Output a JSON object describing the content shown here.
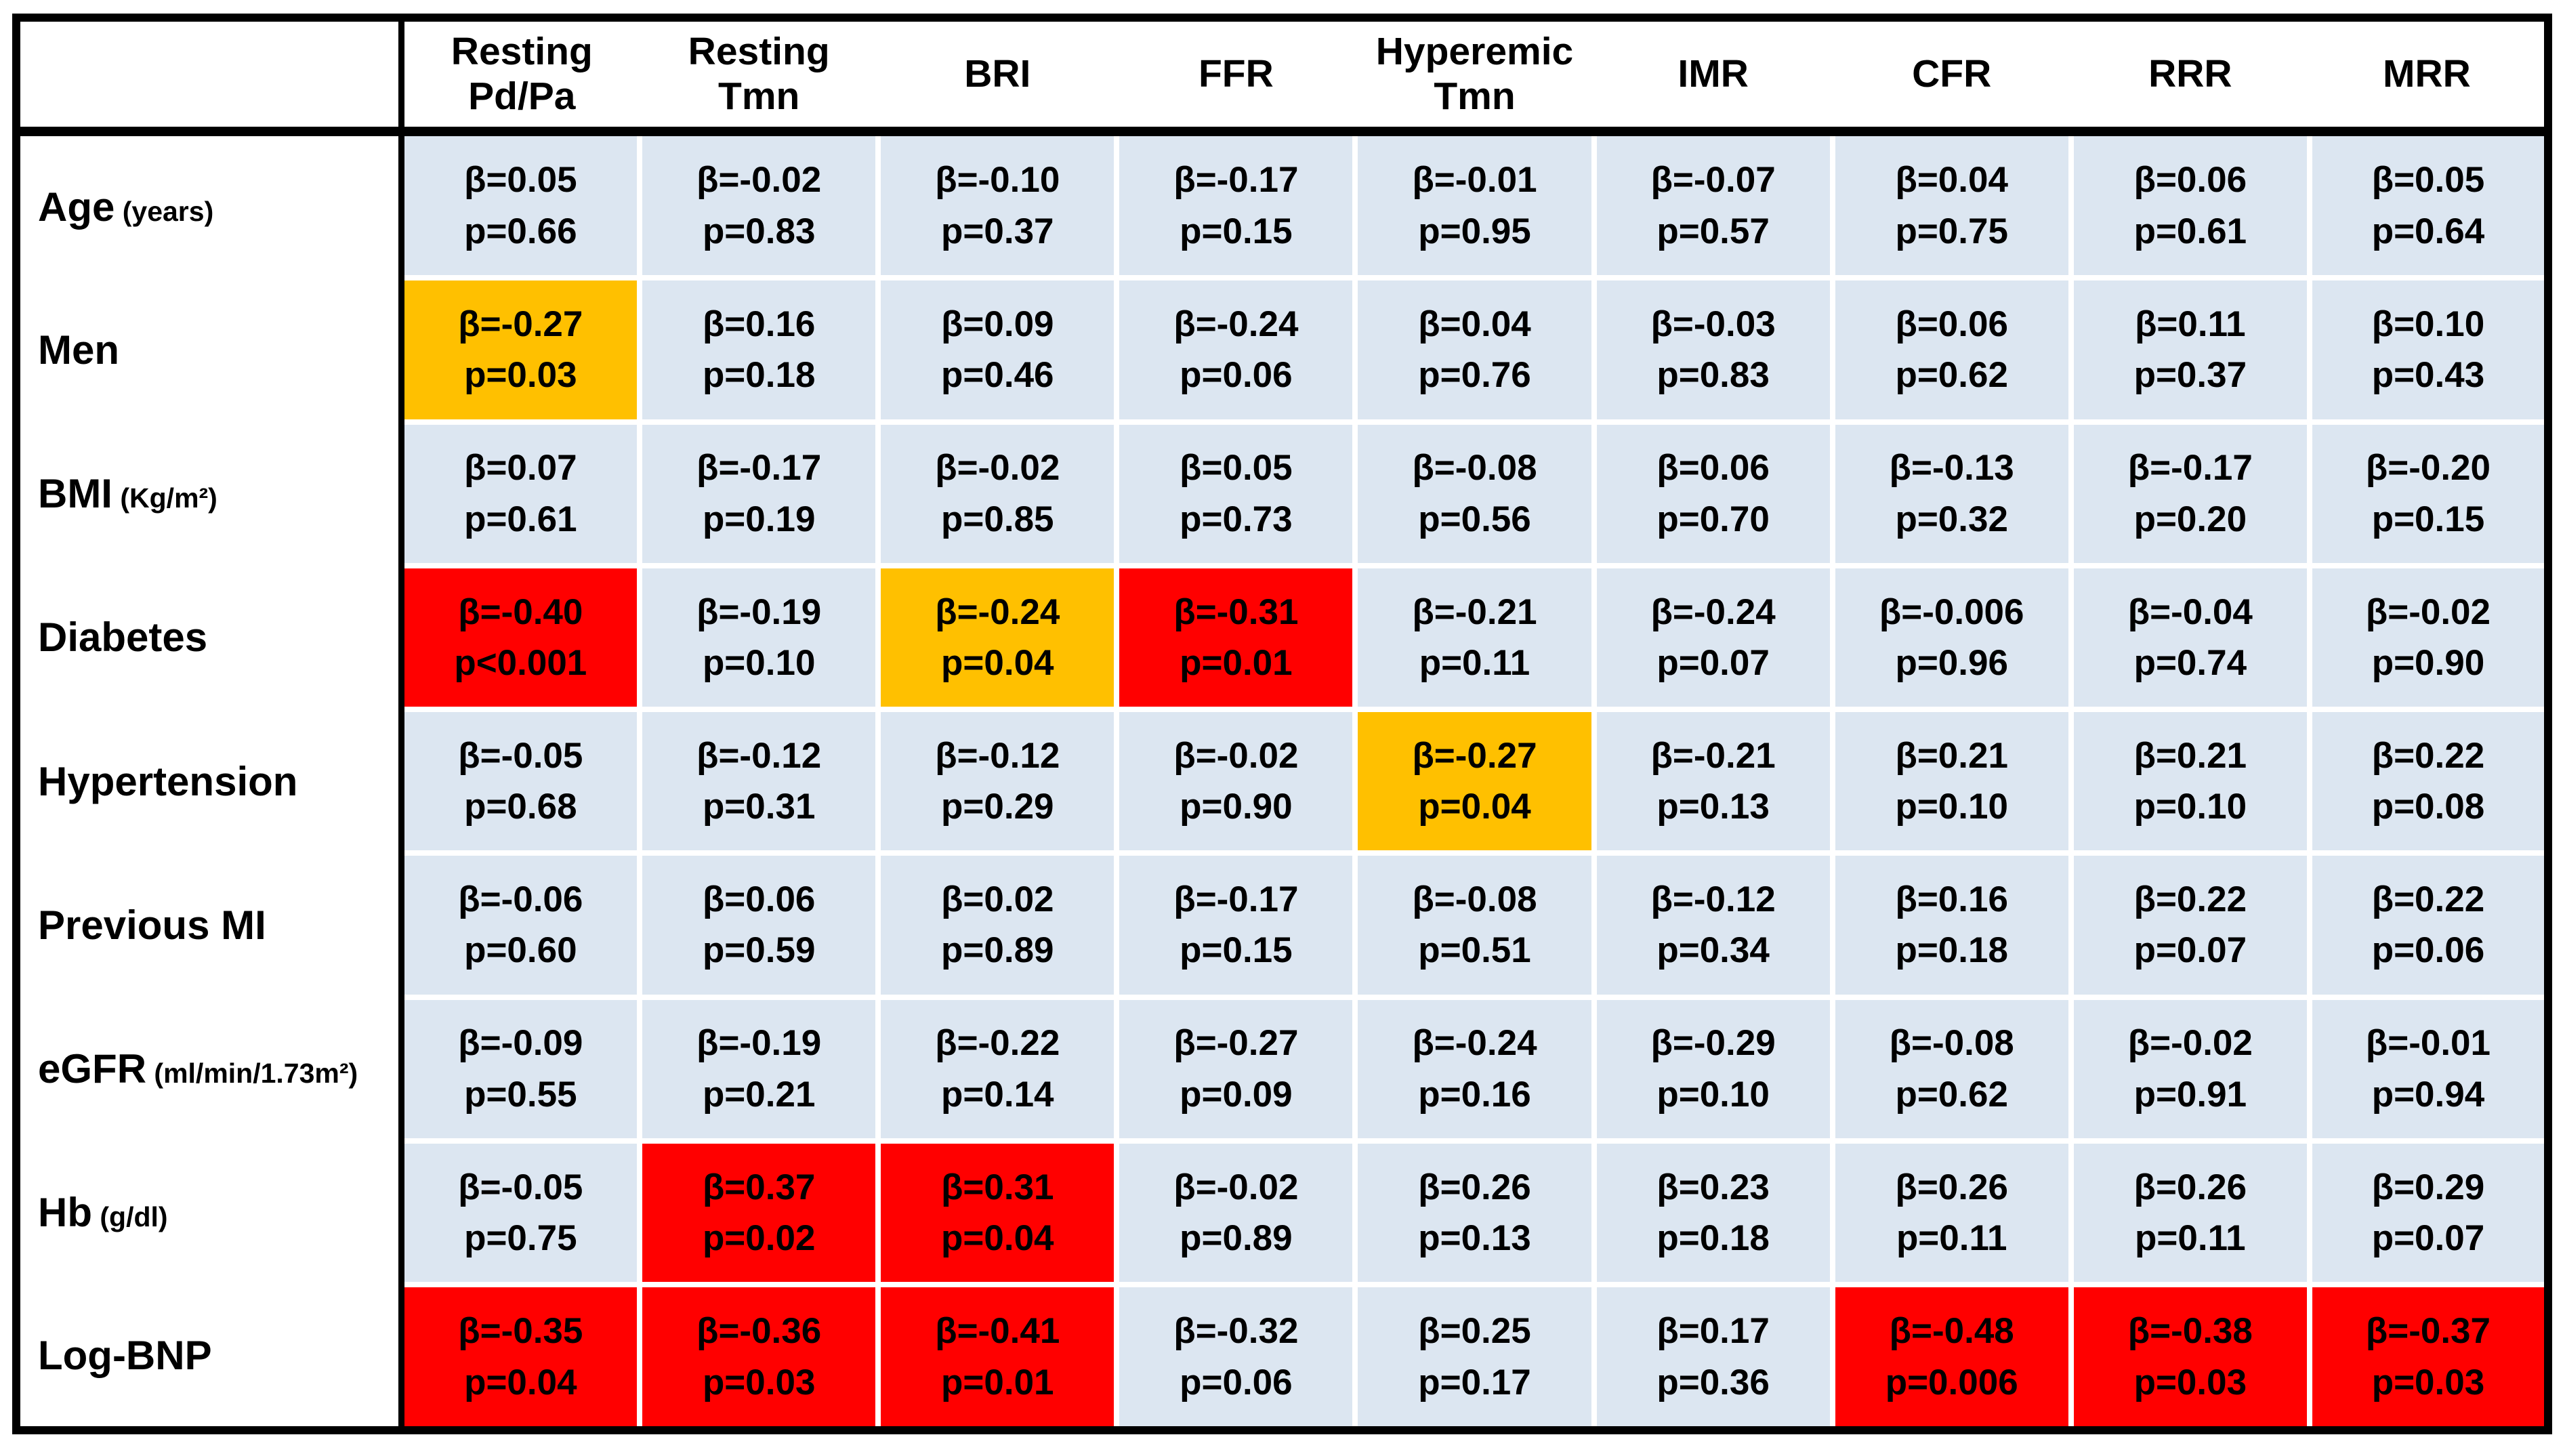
{
  "colors": {
    "cell_background": "#dce6f1",
    "highlight_moderate": "#ffc000",
    "highlight_strong": "#ff0000",
    "border_outer": "#000000",
    "gridline": "#ffffff",
    "text": "#000000"
  },
  "table": {
    "corner_label": "",
    "columns": [
      "Resting Pd/Pa",
      "Resting Tmn",
      "BRI",
      "FFR",
      "Hyperemic Tmn",
      "IMR",
      "CFR",
      "RRR",
      "MRR"
    ],
    "rows": [
      {
        "label": "Age",
        "unit": "(years)",
        "cells": [
          {
            "beta": "β=0.05",
            "p": "p=0.66",
            "hl": ""
          },
          {
            "beta": "β=-0.02",
            "p": "p=0.83",
            "hl": ""
          },
          {
            "beta": "β=-0.10",
            "p": "p=0.37",
            "hl": ""
          },
          {
            "beta": "β=-0.17",
            "p": "p=0.15",
            "hl": ""
          },
          {
            "beta": "β=-0.01",
            "p": "p=0.95",
            "hl": ""
          },
          {
            "beta": "β=-0.07",
            "p": "p=0.57",
            "hl": ""
          },
          {
            "beta": "β=0.04",
            "p": "p=0.75",
            "hl": ""
          },
          {
            "beta": "β=0.06",
            "p": "p=0.61",
            "hl": ""
          },
          {
            "beta": "β=0.05",
            "p": "p=0.64",
            "hl": ""
          }
        ]
      },
      {
        "label": "Men",
        "unit": "",
        "cells": [
          {
            "beta": "β=-0.27",
            "p": "p=0.03",
            "hl": "orange"
          },
          {
            "beta": "β=0.16",
            "p": "p=0.18",
            "hl": ""
          },
          {
            "beta": "β=0.09",
            "p": "p=0.46",
            "hl": ""
          },
          {
            "beta": "β=-0.24",
            "p": "p=0.06",
            "hl": ""
          },
          {
            "beta": "β=0.04",
            "p": "p=0.76",
            "hl": ""
          },
          {
            "beta": "β=-0.03",
            "p": "p=0.83",
            "hl": ""
          },
          {
            "beta": "β=0.06",
            "p": "p=0.62",
            "hl": ""
          },
          {
            "beta": "β=0.11",
            "p": "p=0.37",
            "hl": ""
          },
          {
            "beta": "β=0.10",
            "p": "p=0.43",
            "hl": ""
          }
        ]
      },
      {
        "label": "BMI",
        "unit": "(Kg/m²)",
        "cells": [
          {
            "beta": "β=0.07",
            "p": "p=0.61",
            "hl": ""
          },
          {
            "beta": "β=-0.17",
            "p": "p=0.19",
            "hl": ""
          },
          {
            "beta": "β=-0.02",
            "p": "p=0.85",
            "hl": ""
          },
          {
            "beta": "β=0.05",
            "p": "p=0.73",
            "hl": ""
          },
          {
            "beta": "β=-0.08",
            "p": "p=0.56",
            "hl": ""
          },
          {
            "beta": "β=0.06",
            "p": "p=0.70",
            "hl": ""
          },
          {
            "beta": "β=-0.13",
            "p": "p=0.32",
            "hl": ""
          },
          {
            "beta": "β=-0.17",
            "p": "p=0.20",
            "hl": ""
          },
          {
            "beta": "β=-0.20",
            "p": "p=0.15",
            "hl": ""
          }
        ]
      },
      {
        "label": "Diabetes",
        "unit": "",
        "cells": [
          {
            "beta": "β=-0.40",
            "p": "p<0.001",
            "hl": "red"
          },
          {
            "beta": "β=-0.19",
            "p": "p=0.10",
            "hl": ""
          },
          {
            "beta": "β=-0.24",
            "p": "p=0.04",
            "hl": "orange"
          },
          {
            "beta": "β=-0.31",
            "p": "p=0.01",
            "hl": "red"
          },
          {
            "beta": "β=-0.21",
            "p": "p=0.11",
            "hl": ""
          },
          {
            "beta": "β=-0.24",
            "p": "p=0.07",
            "hl": ""
          },
          {
            "beta": "β=-0.006",
            "p": "p=0.96",
            "hl": ""
          },
          {
            "beta": "β=-0.04",
            "p": "p=0.74",
            "hl": ""
          },
          {
            "beta": "β=-0.02",
            "p": "p=0.90",
            "hl": ""
          }
        ]
      },
      {
        "label": "Hypertension",
        "unit": "",
        "cells": [
          {
            "beta": "β=-0.05",
            "p": "p=0.68",
            "hl": ""
          },
          {
            "beta": "β=-0.12",
            "p": "p=0.31",
            "hl": ""
          },
          {
            "beta": "β=-0.12",
            "p": "p=0.29",
            "hl": ""
          },
          {
            "beta": "β=-0.02",
            "p": "p=0.90",
            "hl": ""
          },
          {
            "beta": "β=-0.27",
            "p": "p=0.04",
            "hl": "orange"
          },
          {
            "beta": "β=-0.21",
            "p": "p=0.13",
            "hl": ""
          },
          {
            "beta": "β=0.21",
            "p": "p=0.10",
            "hl": ""
          },
          {
            "beta": "β=0.21",
            "p": "p=0.10",
            "hl": ""
          },
          {
            "beta": "β=0.22",
            "p": "p=0.08",
            "hl": ""
          }
        ]
      },
      {
        "label": "Previous MI",
        "unit": "",
        "cells": [
          {
            "beta": "β=-0.06",
            "p": "p=0.60",
            "hl": ""
          },
          {
            "beta": "β=0.06",
            "p": "p=0.59",
            "hl": ""
          },
          {
            "beta": "β=0.02",
            "p": "p=0.89",
            "hl": ""
          },
          {
            "beta": "β=-0.17",
            "p": "p=0.15",
            "hl": ""
          },
          {
            "beta": "β=-0.08",
            "p": "p=0.51",
            "hl": ""
          },
          {
            "beta": "β=-0.12",
            "p": "p=0.34",
            "hl": ""
          },
          {
            "beta": "β=0.16",
            "p": "p=0.18",
            "hl": ""
          },
          {
            "beta": "β=0.22",
            "p": "p=0.07",
            "hl": ""
          },
          {
            "beta": "β=0.22",
            "p": "p=0.06",
            "hl": ""
          }
        ]
      },
      {
        "label": "eGFR",
        "unit": "(ml/min/1.73m²)",
        "cells": [
          {
            "beta": "β=-0.09",
            "p": "p=0.55",
            "hl": ""
          },
          {
            "beta": "β=-0.19",
            "p": "p=0.21",
            "hl": ""
          },
          {
            "beta": "β=-0.22",
            "p": "p=0.14",
            "hl": ""
          },
          {
            "beta": "β=-0.27",
            "p": "p=0.09",
            "hl": ""
          },
          {
            "beta": "β=-0.24",
            "p": "p=0.16",
            "hl": ""
          },
          {
            "beta": "β=-0.29",
            "p": "p=0.10",
            "hl": ""
          },
          {
            "beta": "β=-0.08",
            "p": "p=0.62",
            "hl": ""
          },
          {
            "beta": "β=-0.02",
            "p": "p=0.91",
            "hl": ""
          },
          {
            "beta": "β=-0.01",
            "p": "p=0.94",
            "hl": ""
          }
        ]
      },
      {
        "label": "Hb",
        "unit": "(g/dl)",
        "cells": [
          {
            "beta": "β=-0.05",
            "p": "p=0.75",
            "hl": ""
          },
          {
            "beta": "β=0.37",
            "p": "p=0.02",
            "hl": "red"
          },
          {
            "beta": "β=0.31",
            "p": "p=0.04",
            "hl": "red"
          },
          {
            "beta": "β=-0.02",
            "p": "p=0.89",
            "hl": ""
          },
          {
            "beta": "β=0.26",
            "p": "p=0.13",
            "hl": ""
          },
          {
            "beta": "β=0.23",
            "p": "p=0.18",
            "hl": ""
          },
          {
            "beta": "β=0.26",
            "p": "p=0.11",
            "hl": ""
          },
          {
            "beta": "β=0.26",
            "p": "p=0.11",
            "hl": ""
          },
          {
            "beta": "β=0.29",
            "p": "p=0.07",
            "hl": ""
          }
        ]
      },
      {
        "label": "Log-BNP",
        "unit": "",
        "cells": [
          {
            "beta": "β=-0.35",
            "p": "p=0.04",
            "hl": "red"
          },
          {
            "beta": "β=-0.36",
            "p": "p=0.03",
            "hl": "red"
          },
          {
            "beta": "β=-0.41",
            "p": "p=0.01",
            "hl": "red"
          },
          {
            "beta": "β=-0.32",
            "p": "p=0.06",
            "hl": ""
          },
          {
            "beta": "β=0.25",
            "p": "p=0.17",
            "hl": ""
          },
          {
            "beta": "β=0.17",
            "p": "p=0.36",
            "hl": ""
          },
          {
            "beta": "β=-0.48",
            "p": "p=0.006",
            "hl": "red"
          },
          {
            "beta": "β=-0.38",
            "p": "p=0.03",
            "hl": "red"
          },
          {
            "beta": "β=-0.37",
            "p": "p=0.03",
            "hl": "red"
          }
        ]
      }
    ]
  }
}
